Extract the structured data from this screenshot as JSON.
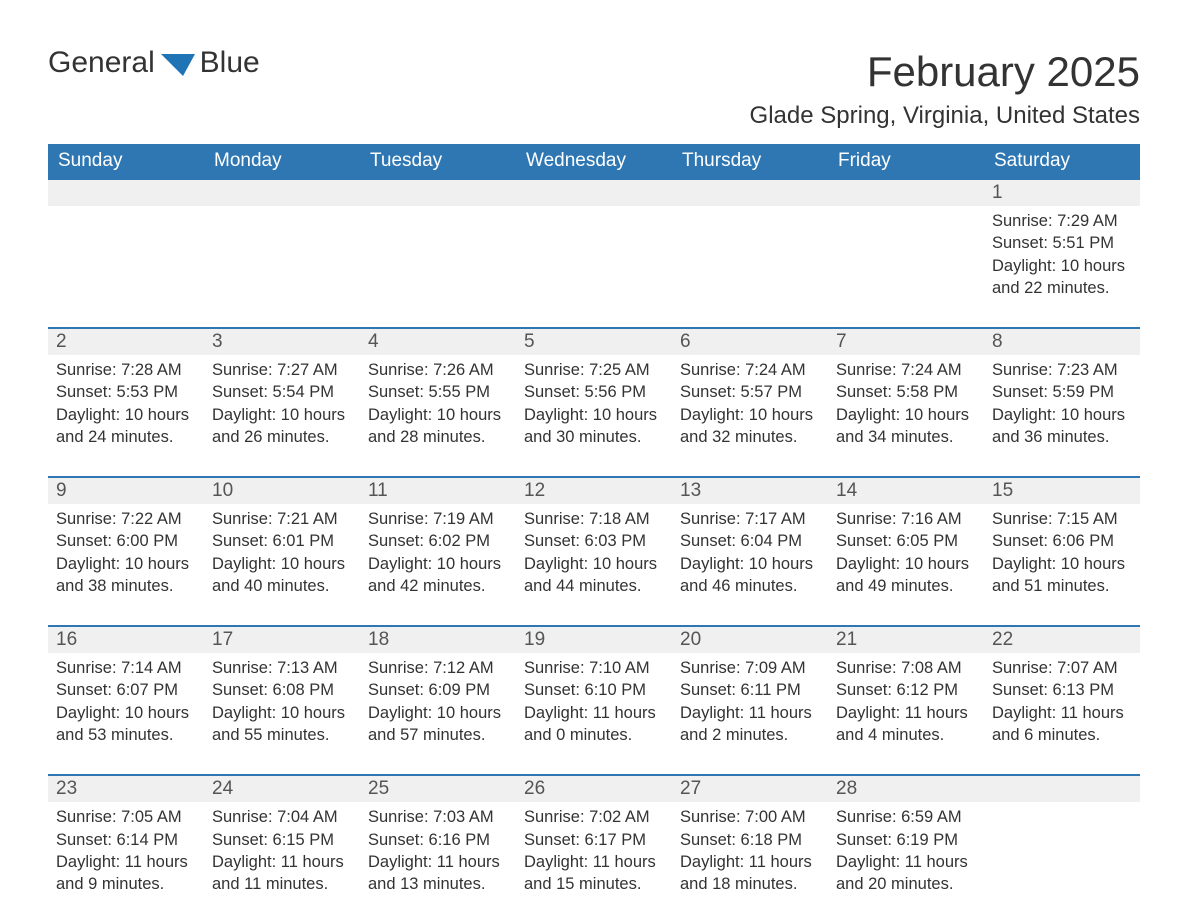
{
  "brand": {
    "word1": "General",
    "word2": "Blue"
  },
  "title": "February 2025",
  "location": "Glade Spring, Virginia, United States",
  "colors": {
    "header_bg": "#2e77b3",
    "header_text": "#ffffff",
    "daynum_bg": "#f0f0f0",
    "daynum_text": "#555555",
    "body_text": "#333333",
    "accent": "#1f74b6",
    "page_bg": "#ffffff",
    "row_border": "#2e77b3"
  },
  "typography": {
    "title_fontsize": 42,
    "location_fontsize": 24,
    "dow_fontsize": 19,
    "daynum_fontsize": 19,
    "detail_fontsize": 16.5,
    "font_family": "Arial"
  },
  "dow": [
    "Sunday",
    "Monday",
    "Tuesday",
    "Wednesday",
    "Thursday",
    "Friday",
    "Saturday"
  ],
  "weeks": [
    [
      null,
      null,
      null,
      null,
      null,
      null,
      {
        "n": "1",
        "sr": "Sunrise: 7:29 AM",
        "ss": "Sunset: 5:51 PM",
        "dl": "Daylight: 10 hours and 22 minutes."
      }
    ],
    [
      {
        "n": "2",
        "sr": "Sunrise: 7:28 AM",
        "ss": "Sunset: 5:53 PM",
        "dl": "Daylight: 10 hours and 24 minutes."
      },
      {
        "n": "3",
        "sr": "Sunrise: 7:27 AM",
        "ss": "Sunset: 5:54 PM",
        "dl": "Daylight: 10 hours and 26 minutes."
      },
      {
        "n": "4",
        "sr": "Sunrise: 7:26 AM",
        "ss": "Sunset: 5:55 PM",
        "dl": "Daylight: 10 hours and 28 minutes."
      },
      {
        "n": "5",
        "sr": "Sunrise: 7:25 AM",
        "ss": "Sunset: 5:56 PM",
        "dl": "Daylight: 10 hours and 30 minutes."
      },
      {
        "n": "6",
        "sr": "Sunrise: 7:24 AM",
        "ss": "Sunset: 5:57 PM",
        "dl": "Daylight: 10 hours and 32 minutes."
      },
      {
        "n": "7",
        "sr": "Sunrise: 7:24 AM",
        "ss": "Sunset: 5:58 PM",
        "dl": "Daylight: 10 hours and 34 minutes."
      },
      {
        "n": "8",
        "sr": "Sunrise: 7:23 AM",
        "ss": "Sunset: 5:59 PM",
        "dl": "Daylight: 10 hours and 36 minutes."
      }
    ],
    [
      {
        "n": "9",
        "sr": "Sunrise: 7:22 AM",
        "ss": "Sunset: 6:00 PM",
        "dl": "Daylight: 10 hours and 38 minutes."
      },
      {
        "n": "10",
        "sr": "Sunrise: 7:21 AM",
        "ss": "Sunset: 6:01 PM",
        "dl": "Daylight: 10 hours and 40 minutes."
      },
      {
        "n": "11",
        "sr": "Sunrise: 7:19 AM",
        "ss": "Sunset: 6:02 PM",
        "dl": "Daylight: 10 hours and 42 minutes."
      },
      {
        "n": "12",
        "sr": "Sunrise: 7:18 AM",
        "ss": "Sunset: 6:03 PM",
        "dl": "Daylight: 10 hours and 44 minutes."
      },
      {
        "n": "13",
        "sr": "Sunrise: 7:17 AM",
        "ss": "Sunset: 6:04 PM",
        "dl": "Daylight: 10 hours and 46 minutes."
      },
      {
        "n": "14",
        "sr": "Sunrise: 7:16 AM",
        "ss": "Sunset: 6:05 PM",
        "dl": "Daylight: 10 hours and 49 minutes."
      },
      {
        "n": "15",
        "sr": "Sunrise: 7:15 AM",
        "ss": "Sunset: 6:06 PM",
        "dl": "Daylight: 10 hours and 51 minutes."
      }
    ],
    [
      {
        "n": "16",
        "sr": "Sunrise: 7:14 AM",
        "ss": "Sunset: 6:07 PM",
        "dl": "Daylight: 10 hours and 53 minutes."
      },
      {
        "n": "17",
        "sr": "Sunrise: 7:13 AM",
        "ss": "Sunset: 6:08 PM",
        "dl": "Daylight: 10 hours and 55 minutes."
      },
      {
        "n": "18",
        "sr": "Sunrise: 7:12 AM",
        "ss": "Sunset: 6:09 PM",
        "dl": "Daylight: 10 hours and 57 minutes."
      },
      {
        "n": "19",
        "sr": "Sunrise: 7:10 AM",
        "ss": "Sunset: 6:10 PM",
        "dl": "Daylight: 11 hours and 0 minutes."
      },
      {
        "n": "20",
        "sr": "Sunrise: 7:09 AM",
        "ss": "Sunset: 6:11 PM",
        "dl": "Daylight: 11 hours and 2 minutes."
      },
      {
        "n": "21",
        "sr": "Sunrise: 7:08 AM",
        "ss": "Sunset: 6:12 PM",
        "dl": "Daylight: 11 hours and 4 minutes."
      },
      {
        "n": "22",
        "sr": "Sunrise: 7:07 AM",
        "ss": "Sunset: 6:13 PM",
        "dl": "Daylight: 11 hours and 6 minutes."
      }
    ],
    [
      {
        "n": "23",
        "sr": "Sunrise: 7:05 AM",
        "ss": "Sunset: 6:14 PM",
        "dl": "Daylight: 11 hours and 9 minutes."
      },
      {
        "n": "24",
        "sr": "Sunrise: 7:04 AM",
        "ss": "Sunset: 6:15 PM",
        "dl": "Daylight: 11 hours and 11 minutes."
      },
      {
        "n": "25",
        "sr": "Sunrise: 7:03 AM",
        "ss": "Sunset: 6:16 PM",
        "dl": "Daylight: 11 hours and 13 minutes."
      },
      {
        "n": "26",
        "sr": "Sunrise: 7:02 AM",
        "ss": "Sunset: 6:17 PM",
        "dl": "Daylight: 11 hours and 15 minutes."
      },
      {
        "n": "27",
        "sr": "Sunrise: 7:00 AM",
        "ss": "Sunset: 6:18 PM",
        "dl": "Daylight: 11 hours and 18 minutes."
      },
      {
        "n": "28",
        "sr": "Sunrise: 6:59 AM",
        "ss": "Sunset: 6:19 PM",
        "dl": "Daylight: 11 hours and 20 minutes."
      },
      null
    ]
  ]
}
